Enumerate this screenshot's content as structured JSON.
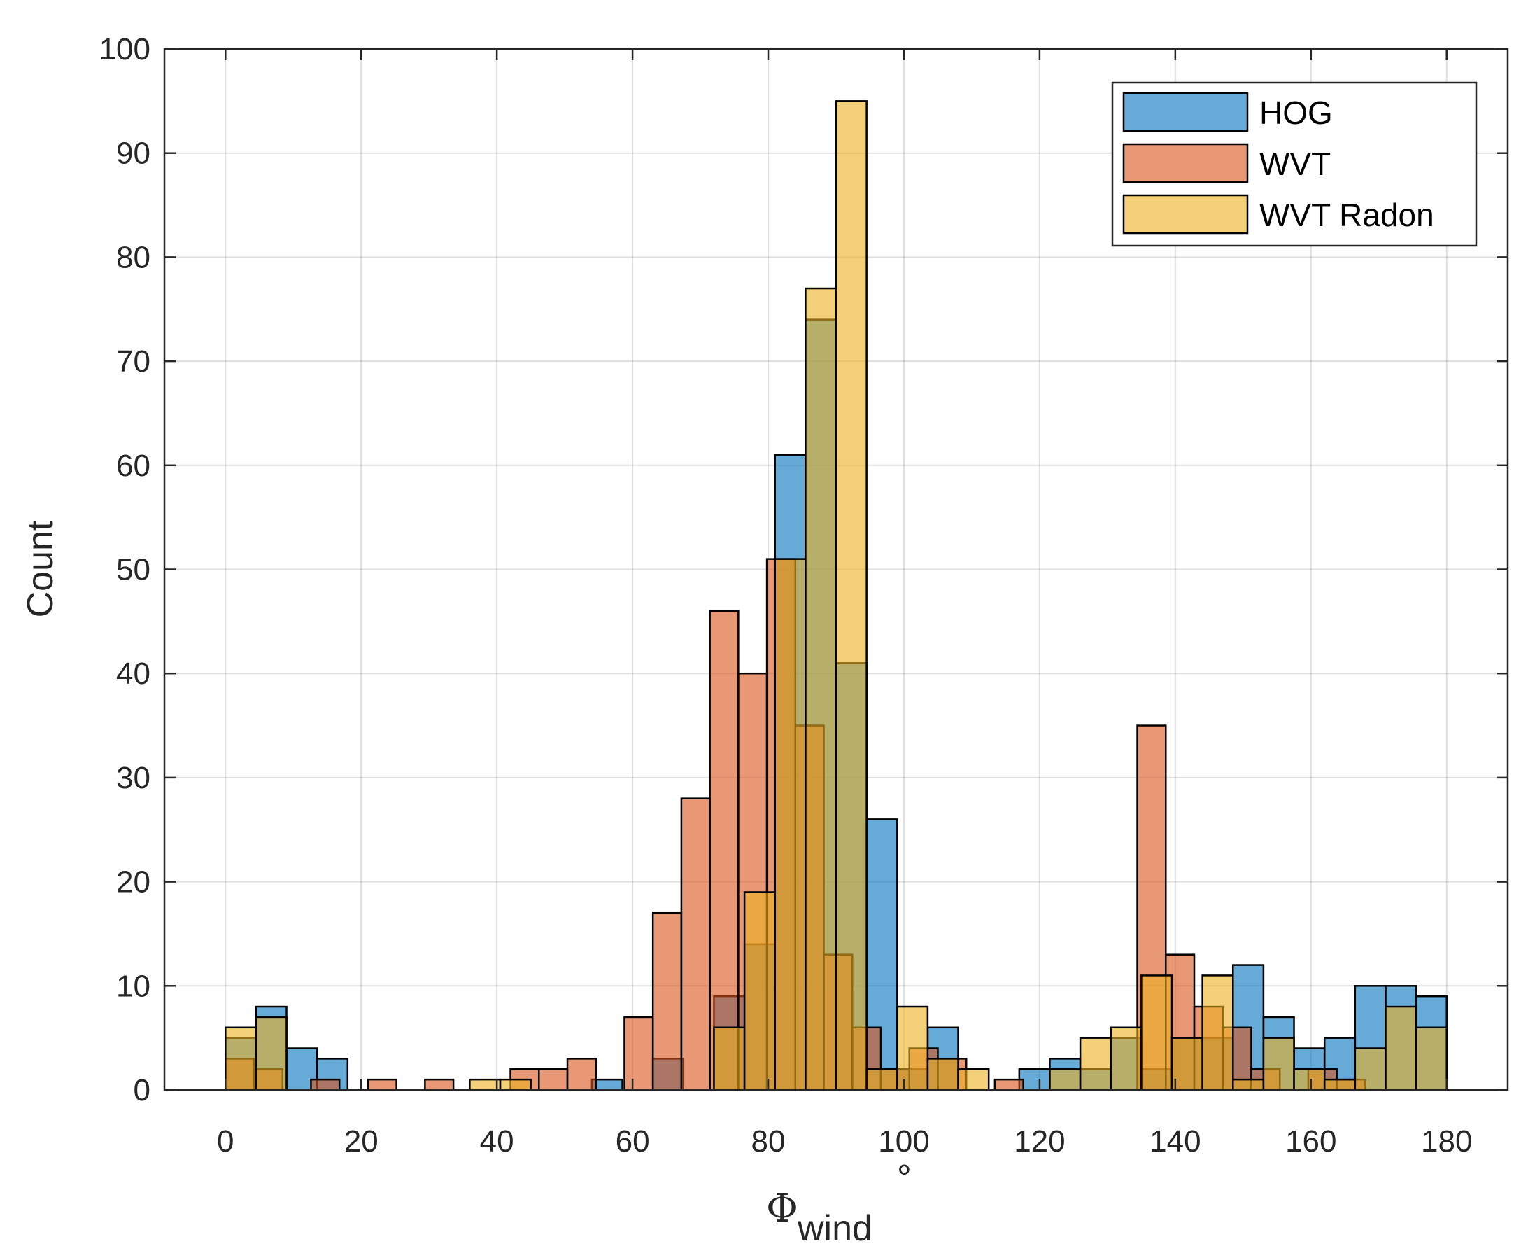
{
  "chart_data": {
    "type": "bar",
    "subtype": "overlapping-histogram",
    "title": "",
    "xlabel_symbol": "Φ",
    "xlabel_subscript": "wind",
    "xlabel_unit": "°",
    "ylabel": "Count",
    "xlim": [
      -9,
      189
    ],
    "ylim": [
      0,
      100
    ],
    "xticks": [
      0,
      20,
      40,
      60,
      80,
      100,
      120,
      140,
      160,
      180
    ],
    "yticks": [
      0,
      10,
      20,
      30,
      40,
      50,
      60,
      70,
      80,
      90,
      100
    ],
    "grid": true,
    "legend_position": "top-right",
    "series": [
      {
        "name": "HOG",
        "color": "#0072BD",
        "bin_width": 4.5,
        "bins": [
          {
            "x0": 0,
            "value": 5
          },
          {
            "x0": 4.5,
            "value": 8
          },
          {
            "x0": 9,
            "value": 4
          },
          {
            "x0": 13.5,
            "value": 3
          },
          {
            "x0": 54,
            "value": 1
          },
          {
            "x0": 63,
            "value": 3
          },
          {
            "x0": 72,
            "value": 9
          },
          {
            "x0": 76.5,
            "value": 14
          },
          {
            "x0": 81,
            "value": 61
          },
          {
            "x0": 85.5,
            "value": 74
          },
          {
            "x0": 90,
            "value": 41
          },
          {
            "x0": 94.5,
            "value": 26
          },
          {
            "x0": 99,
            "value": 2
          },
          {
            "x0": 103.5,
            "value": 6
          },
          {
            "x0": 117,
            "value": 2
          },
          {
            "x0": 121.5,
            "value": 3
          },
          {
            "x0": 126,
            "value": 2
          },
          {
            "x0": 130.5,
            "value": 5
          },
          {
            "x0": 135,
            "value": 2
          },
          {
            "x0": 139.5,
            "value": 5
          },
          {
            "x0": 144,
            "value": 5
          },
          {
            "x0": 148.5,
            "value": 12
          },
          {
            "x0": 153,
            "value": 7
          },
          {
            "x0": 157.5,
            "value": 4
          },
          {
            "x0": 162,
            "value": 5
          },
          {
            "x0": 166.5,
            "value": 10
          },
          {
            "x0": 171,
            "value": 10
          },
          {
            "x0": 175.5,
            "value": 9
          }
        ]
      },
      {
        "name": "WVT",
        "color": "#D95319",
        "bin_width": 4.2,
        "bins": [
          {
            "x0": 0,
            "value": 3
          },
          {
            "x0": 4.2,
            "value": 2
          },
          {
            "x0": 12.6,
            "value": 1
          },
          {
            "x0": 21,
            "value": 1
          },
          {
            "x0": 29.4,
            "value": 1
          },
          {
            "x0": 42,
            "value": 2
          },
          {
            "x0": 46.2,
            "value": 2
          },
          {
            "x0": 50.4,
            "value": 3
          },
          {
            "x0": 58.8,
            "value": 7
          },
          {
            "x0": 63,
            "value": 17
          },
          {
            "x0": 67.2,
            "value": 28
          },
          {
            "x0": 71.4,
            "value": 46
          },
          {
            "x0": 75.6,
            "value": 40
          },
          {
            "x0": 79.8,
            "value": 51
          },
          {
            "x0": 84,
            "value": 35
          },
          {
            "x0": 88.2,
            "value": 13
          },
          {
            "x0": 92.4,
            "value": 6
          },
          {
            "x0": 96.6,
            "value": 2
          },
          {
            "x0": 100.8,
            "value": 4
          },
          {
            "x0": 105,
            "value": 3
          },
          {
            "x0": 113.4,
            "value": 1
          },
          {
            "x0": 134.4,
            "value": 35
          },
          {
            "x0": 138.6,
            "value": 13
          },
          {
            "x0": 142.8,
            "value": 8
          },
          {
            "x0": 147,
            "value": 6
          },
          {
            "x0": 151.2,
            "value": 2
          },
          {
            "x0": 159.6,
            "value": 2
          },
          {
            "x0": 163.8,
            "value": 1
          }
        ]
      },
      {
        "name": "WVT Radon",
        "color": "#EDB120",
        "bin_width": 4.5,
        "bins": [
          {
            "x0": 0,
            "value": 6
          },
          {
            "x0": 4.5,
            "value": 7
          },
          {
            "x0": 36,
            "value": 1
          },
          {
            "x0": 40.5,
            "value": 1
          },
          {
            "x0": 72,
            "value": 6
          },
          {
            "x0": 76.5,
            "value": 19
          },
          {
            "x0": 81,
            "value": 51
          },
          {
            "x0": 85.5,
            "value": 77
          },
          {
            "x0": 90,
            "value": 95
          },
          {
            "x0": 94.5,
            "value": 2
          },
          {
            "x0": 99,
            "value": 8
          },
          {
            "x0": 103.5,
            "value": 3
          },
          {
            "x0": 108,
            "value": 2
          },
          {
            "x0": 121.5,
            "value": 2
          },
          {
            "x0": 126,
            "value": 5
          },
          {
            "x0": 130.5,
            "value": 6
          },
          {
            "x0": 135,
            "value": 11
          },
          {
            "x0": 139.5,
            "value": 5
          },
          {
            "x0": 144,
            "value": 11
          },
          {
            "x0": 148.5,
            "value": 1
          },
          {
            "x0": 153,
            "value": 5
          },
          {
            "x0": 157.5,
            "value": 2
          },
          {
            "x0": 162,
            "value": 1
          },
          {
            "x0": 166.5,
            "value": 4
          },
          {
            "x0": 171,
            "value": 8
          },
          {
            "x0": 175.5,
            "value": 6
          }
        ]
      }
    ]
  }
}
